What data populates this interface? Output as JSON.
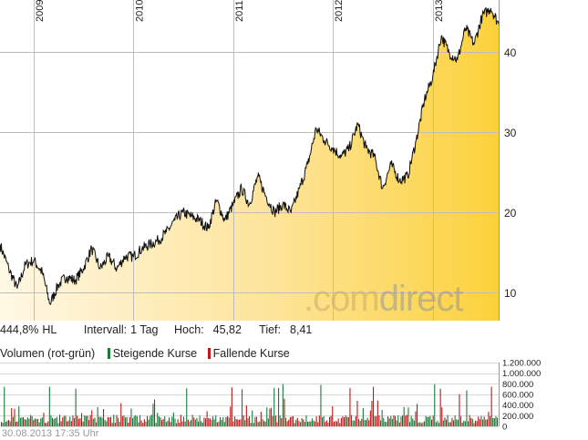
{
  "chart_data": [
    {
      "type": "area",
      "x_ticks": [
        "2009",
        "2010",
        "2011",
        "2012",
        "2013"
      ],
      "y_ticks": [
        10,
        20,
        30,
        40
      ],
      "ylim": [
        6.5,
        46.5
      ],
      "xlim": [
        "2008-08-30",
        "2013-08-30"
      ],
      "x": [
        "2008-08-30",
        "2008-10-01",
        "2008-11-01",
        "2008-12-01",
        "2009-01-01",
        "2009-02-01",
        "2009-03-01",
        "2009-04-01",
        "2009-05-01",
        "2009-06-01",
        "2009-07-01",
        "2009-08-01",
        "2009-09-01",
        "2009-10-01",
        "2009-11-01",
        "2009-12-01",
        "2010-01-01",
        "2010-02-01",
        "2010-03-01",
        "2010-04-01",
        "2010-05-01",
        "2010-06-01",
        "2010-07-01",
        "2010-08-01",
        "2010-09-01",
        "2010-10-01",
        "2010-11-01",
        "2010-12-01",
        "2011-01-01",
        "2011-02-01",
        "2011-03-01",
        "2011-04-01",
        "2011-05-01",
        "2011-06-01",
        "2011-07-01",
        "2011-08-01",
        "2011-09-01",
        "2011-10-01",
        "2011-11-01",
        "2011-12-01",
        "2012-01-01",
        "2012-02-01",
        "2012-03-01",
        "2012-04-01",
        "2012-05-01",
        "2012-06-01",
        "2012-07-01",
        "2012-08-01",
        "2012-09-01",
        "2012-10-01",
        "2012-11-01",
        "2012-12-01",
        "2013-01-01",
        "2013-02-01",
        "2013-03-01",
        "2013-04-01",
        "2013-05-01",
        "2013-06-01",
        "2013-07-01",
        "2013-08-01",
        "2013-08-30"
      ],
      "y": [
        16,
        13,
        10.5,
        13.5,
        14,
        12.5,
        8.6,
        11,
        12,
        11.5,
        13,
        15.5,
        13,
        14.5,
        13,
        14.5,
        14.5,
        15.5,
        16,
        16.5,
        17.5,
        19,
        20,
        19.5,
        19,
        18,
        21.5,
        19,
        21,
        23,
        21,
        24.5,
        22,
        20,
        21,
        20,
        23,
        26,
        30.5,
        29,
        28,
        27,
        28,
        31,
        28,
        27,
        23,
        26,
        24,
        24.5,
        29,
        34,
        37,
        42,
        40,
        39,
        43,
        41,
        44.5,
        45.5,
        43.5
      ],
      "summary": {
        "change": "444,8%",
        "change_suffix": "HL",
        "interval_label": "Intervall:",
        "interval_value": "1 Tag",
        "high_label": "Hoch:",
        "high_value": "45,82",
        "low_label": "Tief:",
        "low_value": "8,41"
      },
      "watermark": [
        ".com",
        "direct"
      ],
      "colors": {
        "line": "#111111",
        "fill_light": "#fff6dd",
        "fill_dark": "#fdd23c",
        "grid": "#bdbdbd"
      }
    },
    {
      "type": "bar",
      "title": "Volumen (rot-grün)",
      "legend": [
        {
          "label": "Steigende Kurse",
          "color": "#1a7a3a"
        },
        {
          "label": "Fallende Kurse",
          "color": "#c01818"
        }
      ],
      "y_ticks": [
        "0",
        "200.000",
        "400.000",
        "600.000",
        "800.000",
        "1.000.000",
        "1.200.000"
      ],
      "ylim": [
        0,
        1200000
      ],
      "timestamp": "30.08.2013 17:35 Uhr"
    }
  ]
}
